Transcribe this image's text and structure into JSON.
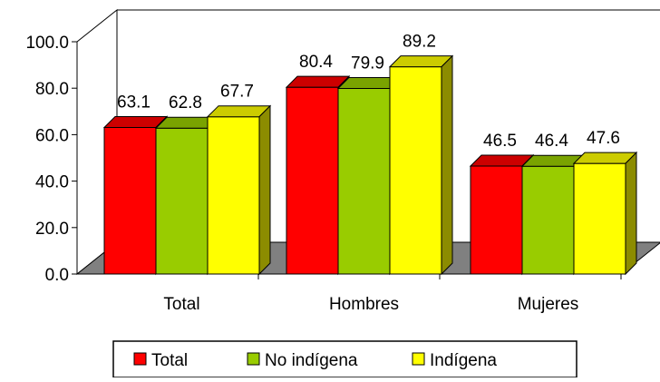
{
  "chart_data": {
    "type": "bar",
    "style": "3d-clustered",
    "categories": [
      "Total",
      "Hombres",
      "Mujeres"
    ],
    "series": [
      {
        "name": "Total",
        "values": [
          63.1,
          80.4,
          46.5
        ],
        "color": "#ff0000"
      },
      {
        "name": "No indígena",
        "values": [
          62.8,
          79.9,
          46.4
        ],
        "color": "#99cc00"
      },
      {
        "name": "Indígena",
        "values": [
          67.7,
          89.2,
          47.6
        ],
        "color": "#ffff00"
      }
    ],
    "y_ticks": [
      "0.0",
      "20.0",
      "40.0",
      "60.0",
      "80.0",
      "100.0"
    ],
    "ylim": [
      0,
      100
    ],
    "floor_color": "#808080",
    "grid": false,
    "legend_position": "bottom"
  }
}
